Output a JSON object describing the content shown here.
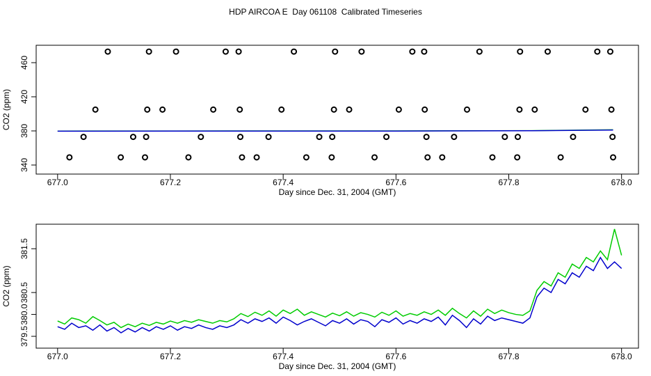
{
  "title": "HDP AIRCOA E  Day 061108  Calibrated Timeseries",
  "chart_data": [
    {
      "type": "scatter",
      "ylabel": "CO2 (ppm)",
      "xlabel": "Day since Dec. 31, 2004 (GMT)",
      "xlim": [
        676.962,
        678.03
      ],
      "ylim": [
        329.4,
        480.4
      ],
      "xticks": [
        {
          "value": 677,
          "label": "677.0"
        },
        677.2,
        677.4,
        677.6,
        677.8,
        {
          "value": 678,
          "label": "678.0"
        }
      ],
      "yticks": [
        340,
        380,
        420,
        460
      ],
      "series": [
        {
          "mode": "points",
          "color": "#000000",
          "x": [
            677.089,
            677.162,
            677.21,
            677.298,
            677.321,
            677.419,
            677.492,
            677.539,
            677.629,
            677.65,
            677.748,
            677.82,
            677.869,
            677.957,
            677.98,
            677.067,
            677.159,
            677.186,
            677.276,
            677.323,
            677.397,
            677.49,
            677.517,
            677.605,
            677.651,
            677.726,
            677.819,
            677.846,
            677.936,
            677.982,
            677.046,
            677.134,
            677.157,
            677.254,
            677.324,
            677.374,
            677.464,
            677.487,
            677.583,
            677.654,
            677.703,
            677.793,
            677.816,
            677.914,
            677.984,
            677.021,
            677.112,
            677.155,
            677.232,
            677.327,
            677.353,
            677.441,
            677.486,
            677.562,
            677.656,
            677.682,
            677.771,
            677.815,
            677.892,
            677.985
          ],
          "values": [
            473,
            473,
            473,
            473,
            473,
            473,
            473,
            473,
            473,
            473,
            473,
            473,
            473,
            473,
            473,
            405,
            405,
            405,
            405,
            405,
            405,
            405,
            405,
            405,
            405,
            405,
            405,
            405,
            405,
            405,
            373,
            373,
            373,
            373,
            373,
            373,
            373,
            373,
            373,
            373,
            373,
            373,
            373,
            373,
            373,
            349,
            349,
            349,
            349,
            349,
            349,
            349,
            349,
            349,
            349,
            349,
            349,
            349,
            349,
            349
          ]
        },
        {
          "mode": "lines",
          "color": "#00cc00",
          "x": [
            677.0,
            677.3,
            677.6,
            677.84,
            677.985
          ],
          "values": [
            379.85,
            380.0,
            380.0,
            380.3,
            381.3
          ]
        },
        {
          "mode": "lines",
          "color": "#0000cc",
          "x": [
            677.0,
            677.3,
            677.6,
            677.84,
            677.985
          ],
          "values": [
            379.7,
            379.85,
            379.85,
            380.2,
            381.05
          ]
        }
      ]
    },
    {
      "type": "line",
      "ylabel": "CO2 (ppm)",
      "xlabel": "Day since Dec. 31, 2004 (GMT)",
      "xlim": [
        676.962,
        678.03
      ],
      "ylim": [
        379.23,
        382.06
      ],
      "xticks": [
        {
          "value": 677,
          "label": "677.0"
        },
        677.2,
        677.4,
        677.6,
        677.8,
        {
          "value": 678,
          "label": "678.0"
        }
      ],
      "yticks": [
        379.5,
        {
          "value": 380,
          "label": "380.0"
        },
        380.5,
        381.5
      ],
      "series": [
        {
          "mode": "lines",
          "color": "#00cc00",
          "x": [
            677.0,
            677.0125,
            677.025,
            677.0375,
            677.05,
            677.0625,
            677.075,
            677.0875,
            677.1,
            677.1125,
            677.125,
            677.1375,
            677.15,
            677.1625,
            677.175,
            677.1875,
            677.2,
            677.2125,
            677.225,
            677.2375,
            677.25,
            677.2625,
            677.275,
            677.2875,
            677.3,
            677.3125,
            677.325,
            677.3375,
            677.35,
            677.3625,
            677.375,
            677.3875,
            677.4,
            677.4125,
            677.425,
            677.4375,
            677.45,
            677.4625,
            677.475,
            677.4875,
            677.5,
            677.5125,
            677.525,
            677.5375,
            677.55,
            677.5625,
            677.575,
            677.5875,
            677.6,
            677.6125,
            677.625,
            677.6375,
            677.65,
            677.6625,
            677.675,
            677.6875,
            677.7,
            677.7125,
            677.725,
            677.7375,
            677.75,
            677.7625,
            677.775,
            677.7875,
            677.8,
            677.8125,
            677.825,
            677.8375,
            677.85,
            677.8625,
            677.875,
            677.8875,
            677.9,
            677.9125,
            677.925,
            677.9375,
            677.95,
            677.9625,
            677.975,
            677.9875,
            678.0
          ],
          "values": [
            379.85,
            379.78,
            379.92,
            379.88,
            379.8,
            379.95,
            379.86,
            379.76,
            379.82,
            379.7,
            379.78,
            379.72,
            379.8,
            379.75,
            379.82,
            379.78,
            379.85,
            379.8,
            379.86,
            379.82,
            379.88,
            379.84,
            379.8,
            379.86,
            379.83,
            379.9,
            380.02,
            379.95,
            380.05,
            379.98,
            380.08,
            379.96,
            380.1,
            380.02,
            380.12,
            379.98,
            380.06,
            380.0,
            379.94,
            380.03,
            379.97,
            380.06,
            379.96,
            380.04,
            380.0,
            379.94,
            380.05,
            379.98,
            380.08,
            379.96,
            380.02,
            379.98,
            380.06,
            380.0,
            380.1,
            379.98,
            380.14,
            380.02,
            379.92,
            380.08,
            379.96,
            380.12,
            380.02,
            380.1,
            380.04,
            380.0,
            379.98,
            380.08,
            380.55,
            380.75,
            380.65,
            380.95,
            380.85,
            381.15,
            381.05,
            381.3,
            381.2,
            381.45,
            381.25,
            381.95,
            381.35
          ]
        },
        {
          "mode": "lines",
          "color": "#0000cc",
          "x": [
            677.0,
            677.0125,
            677.025,
            677.0375,
            677.05,
            677.0625,
            677.075,
            677.0875,
            677.1,
            677.1125,
            677.125,
            677.1375,
            677.15,
            677.1625,
            677.175,
            677.1875,
            677.2,
            677.2125,
            677.225,
            677.2375,
            677.25,
            677.2625,
            677.275,
            677.2875,
            677.3,
            677.3125,
            677.325,
            677.3375,
            677.35,
            677.3625,
            677.375,
            677.3875,
            677.4,
            677.4125,
            677.425,
            677.4375,
            677.45,
            677.4625,
            677.475,
            677.4875,
            677.5,
            677.5125,
            677.525,
            677.5375,
            677.55,
            677.5625,
            677.575,
            677.5875,
            677.6,
            677.6125,
            677.625,
            677.6375,
            677.65,
            677.6625,
            677.675,
            677.6875,
            677.7,
            677.7125,
            677.725,
            677.7375,
            677.75,
            677.7625,
            677.775,
            677.7875,
            677.8,
            677.8125,
            677.825,
            677.8375,
            677.85,
            677.8625,
            677.875,
            677.8875,
            677.9,
            677.9125,
            677.925,
            677.9375,
            677.95,
            677.9625,
            677.975,
            677.9875,
            678.0
          ],
          "values": [
            379.72,
            379.66,
            379.8,
            379.7,
            379.74,
            379.64,
            379.76,
            379.62,
            379.7,
            379.58,
            379.68,
            379.6,
            379.7,
            379.62,
            379.72,
            379.66,
            379.74,
            379.64,
            379.72,
            379.68,
            379.76,
            379.7,
            379.66,
            379.74,
            379.7,
            379.76,
            379.88,
            379.8,
            379.9,
            379.84,
            379.92,
            379.8,
            379.94,
            379.86,
            379.76,
            379.84,
            379.9,
            379.82,
            379.74,
            379.86,
            379.8,
            379.9,
            379.78,
            379.88,
            379.84,
            379.72,
            379.88,
            379.82,
            379.92,
            379.78,
            379.86,
            379.8,
            379.9,
            379.84,
            379.94,
            379.76,
            379.98,
            379.86,
            379.7,
            379.9,
            379.78,
            379.96,
            379.86,
            379.92,
            379.88,
            379.84,
            379.8,
            379.92,
            380.4,
            380.6,
            380.5,
            380.8,
            380.7,
            380.95,
            380.85,
            381.1,
            381.0,
            381.3,
            381.05,
            381.2,
            381.05
          ]
        }
      ]
    }
  ]
}
